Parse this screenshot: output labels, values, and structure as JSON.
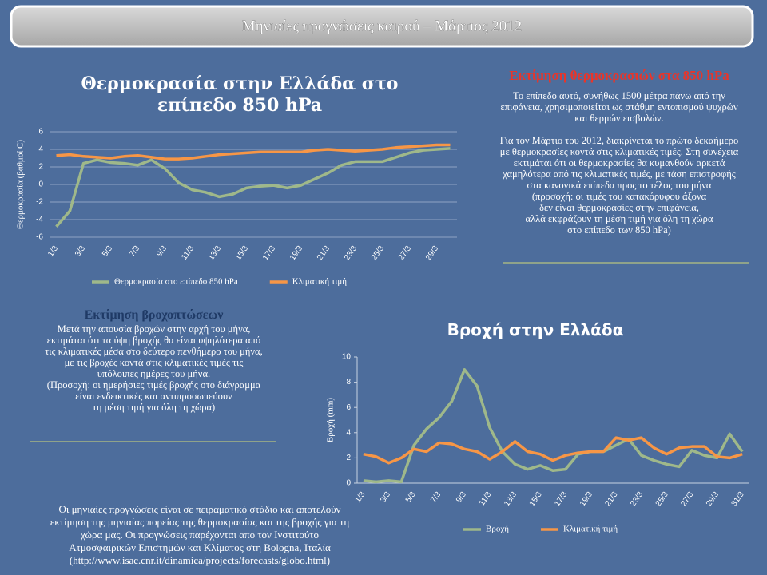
{
  "header": {
    "title": "Μηνιαίες προγνώσεις καιρού – Μάρτιος 2012"
  },
  "chart_data": [
    {
      "type": "line",
      "title": "Θερμοκρασία στην Ελλάδα στο επίπεδο 850 hPa",
      "y_label": "Θερμοκρασία (βαθμοί C)",
      "categories": [
        "1/3",
        null,
        "3/3",
        null,
        "5/3",
        null,
        "7/3",
        null,
        "9/3",
        null,
        "11/3",
        null,
        "13/3",
        null,
        "15/3",
        null,
        "17/3",
        null,
        "19/3",
        null,
        "21/3",
        null,
        "23/3",
        null,
        "25/3",
        null,
        "27/3",
        null,
        "29/3",
        null
      ],
      "series": [
        {
          "name": "Θερμοκρασία στο επίπεδο 850 hPa",
          "color": "#9fb88a",
          "values": [
            -4.8,
            -3,
            2.4,
            2.8,
            2.5,
            2.4,
            2.2,
            2.8,
            1.8,
            0.2,
            -0.6,
            -0.9,
            -1.4,
            -1.1,
            -0.4,
            -0.2,
            -0.1,
            -0.4,
            -0.1,
            0.6,
            1.3,
            2.2,
            2.6,
            2.6,
            2.6,
            3.1,
            3.6,
            3.9,
            4.0,
            4.1
          ]
        },
        {
          "name": "Κλιματική τιμή",
          "color": "#f79646",
          "values": [
            3.3,
            3.4,
            3.2,
            3.1,
            3.0,
            3.2,
            3.3,
            3.1,
            2.9,
            2.9,
            3.0,
            3.2,
            3.4,
            3.5,
            3.6,
            3.7,
            3.7,
            3.7,
            3.7,
            3.9,
            4.0,
            3.9,
            3.8,
            3.9,
            4.0,
            4.2,
            4.3,
            4.4,
            4.5,
            4.5
          ]
        }
      ],
      "ylim": [
        -6,
        6
      ],
      "yticks": [
        -6,
        -4,
        -2,
        0,
        2,
        4,
        6
      ],
      "grid": true,
      "legend": "bottom"
    },
    {
      "type": "line",
      "title": "Βροχή στην Ελλάδα",
      "y_label": "Βροχή (mm)",
      "categories": [
        "1/3",
        null,
        "3/3",
        null,
        "5/3",
        null,
        "7/3",
        null,
        "9/3",
        null,
        "11/3",
        null,
        "13/3",
        null,
        "15/3",
        null,
        "17/3",
        null,
        "19/3",
        null,
        "21/3",
        null,
        "23/3",
        null,
        "25/3",
        null,
        "27/3",
        null,
        "29/3",
        null,
        "31/3"
      ],
      "series": [
        {
          "name": "Βροχή",
          "color": "#9fb88a",
          "values": [
            0.2,
            0.1,
            0.2,
            0.1,
            3.0,
            4.3,
            5.2,
            6.5,
            9.0,
            7.7,
            4.4,
            2.5,
            1.5,
            1.1,
            1.4,
            1.0,
            1.1,
            2.3,
            2.5,
            2.5,
            3.0,
            3.5,
            2.2,
            1.8,
            1.5,
            1.3,
            2.6,
            2.2,
            2.0,
            3.9,
            2.5
          ]
        },
        {
          "name": "Κλιματική τιμή",
          "color": "#f79646",
          "values": [
            2.3,
            2.1,
            1.6,
            2.0,
            2.7,
            2.5,
            3.2,
            3.1,
            2.7,
            2.5,
            1.9,
            2.5,
            3.3,
            2.5,
            2.3,
            1.8,
            2.2,
            2.4,
            2.5,
            2.5,
            3.6,
            3.4,
            3.6,
            2.8,
            2.3,
            2.8,
            2.9,
            2.9,
            2.1,
            2.0,
            2.3
          ]
        }
      ],
      "ylim": [
        0,
        10
      ],
      "yticks": [
        0,
        2,
        4,
        6,
        8,
        10
      ],
      "grid": false,
      "legend": "bottom"
    }
  ],
  "temperature_note": {
    "title": "Εκτίμηση θερμοκρασιών στα 850 hPa",
    "paragraphs": [
      [
        "Το επίπεδο αυτό, συνήθως 1500 μέτρα πάνω από την",
        "επιφάνεια, χρησιμοποιείται ως στάθμη εντοπισμού ψυχρών",
        "και θερμών εισβολών."
      ],
      [
        "Για τον Μάρτιο του 2012, διακρίνεται το πρώτο δεκαήμερο",
        "με θερμοκρασίες κοντά στις κλιματικές τιμές. Στη συνέχεια",
        "εκτιμάται ότι οι θερμοκρασίες θα κυμανθούν αρκετά",
        "χαμηλότερα από τις κλιματικές τιμές, με τάση επιστροφής",
        "στα κανονικά επίπεδα προς το τέλος του μήνα",
        "(προσοχή: οι τιμές του κατακόρυφου άξονα",
        "δεν είναι θερμοκρασίες στην επιφάνεια,",
        "αλλά εκφράζουν τη μέση τιμή για όλη τη χώρα",
        "στο επίπεδο των 850 hPa)"
      ]
    ]
  },
  "rain_note": {
    "title": "Εκτίμηση βροχοπτώσεων",
    "lines": [
      "Μετά την απουσία βροχών στην αρχή του μήνα,",
      "εκτιμάται ότι τα ύψη βροχής θα είναι υψηλότερα από",
      "τις κλιματικές μέσα στο δεύτερο πενθήμερο του μήνα,",
      "με τις βροχές κοντά στις κλιματικές τιμές τις",
      "υπόλοιπες ημέρες του μήνα.",
      "(Προσοχή: οι ημερήσιες τιμές βροχής στο διάγραμμα",
      "είναι ενδεικτικές και αντιπροσωπεύουν",
      "τη μέση τιμή για όλη τη χώρα)"
    ]
  },
  "footer": {
    "lines": [
      "Οι μηνιαίες προγνώσεις είναι σε πειραματικό στάδιο και αποτελούν",
      "εκτίμηση της μηνιαίας πορείας της θερμοκρασίας και της βροχής για τη",
      "χώρα μας. Οι προγνώσεις παρέχονται απο τον Ινστιτούτο",
      "Ατμοσφαιρικών Επιστημών και Κλίματος στη Bologna, Ιταλία",
      "(http://www.isac.cnr.it/dinamica/projects/forecasts/globo.html)"
    ]
  }
}
